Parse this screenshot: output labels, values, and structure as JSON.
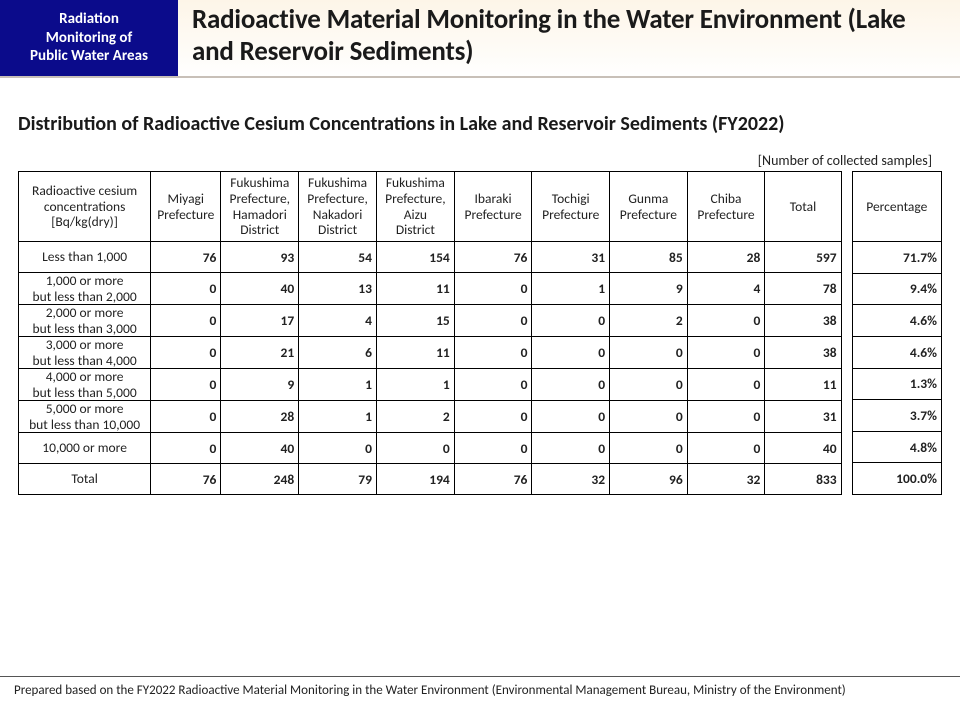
{
  "badge": {
    "line1": "Radiation",
    "line2": "Monitoring of",
    "line3": "Public Water Areas"
  },
  "title": "Radioactive Material Monitoring in the Water Environment (Lake and Reservoir Sediments)",
  "subtitle": "Distribution of Radioactive Cesium Concentrations in Lake and Reservoir Sediments (FY2022)",
  "samples_label": "[Number of collected samples]",
  "table": {
    "row_header": "Radioactive cesium\nconcentrations\n[Bq/kg(dry)]",
    "columns": [
      "Miyagi\nPrefecture",
      "Fukushima\nPrefecture,\nHamadori\nDistrict",
      "Fukushima\nPrefecture,\nNakadori\nDistrict",
      "Fukushima\nPrefecture,\nAizu\nDistrict",
      "Ibaraki\nPrefecture",
      "Tochigi\nPrefecture",
      "Gunma\nPrefecture",
      "Chiba\nPrefecture",
      "Total"
    ],
    "pct_header": "Percentage",
    "rows": [
      {
        "label": "Less than 1,000",
        "cells": [
          76,
          93,
          54,
          154,
          76,
          31,
          85,
          28,
          597
        ],
        "pct": "71.7%"
      },
      {
        "label": "1,000 or more\nbut less than 2,000",
        "cells": [
          0,
          40,
          13,
          11,
          0,
          1,
          9,
          4,
          78
        ],
        "pct": "9.4%"
      },
      {
        "label": "2,000 or more\nbut less than 3,000",
        "cells": [
          0,
          17,
          4,
          15,
          0,
          0,
          2,
          0,
          38
        ],
        "pct": "4.6%"
      },
      {
        "label": "3,000 or more\nbut less than 4,000",
        "cells": [
          0,
          21,
          6,
          11,
          0,
          0,
          0,
          0,
          38
        ],
        "pct": "4.6%"
      },
      {
        "label": "4,000 or more\nbut less than 5,000",
        "cells": [
          0,
          9,
          1,
          1,
          0,
          0,
          0,
          0,
          11
        ],
        "pct": "1.3%"
      },
      {
        "label": "5,000 or more\nbut less than 10,000",
        "cells": [
          0,
          28,
          1,
          2,
          0,
          0,
          0,
          0,
          31
        ],
        "pct": "3.7%"
      },
      {
        "label": "10,000 or more",
        "cells": [
          0,
          40,
          0,
          0,
          0,
          0,
          0,
          0,
          40
        ],
        "pct": "4.8%"
      },
      {
        "label": "Total",
        "cells": [
          76,
          248,
          79,
          194,
          76,
          32,
          96,
          32,
          833
        ],
        "pct": "100.0%"
      }
    ]
  },
  "footer": "Prepared based on the FY2022 Radioactive Material Monitoring in the Water Environment (Environmental Management Bureau, Ministry of the Environment)"
}
